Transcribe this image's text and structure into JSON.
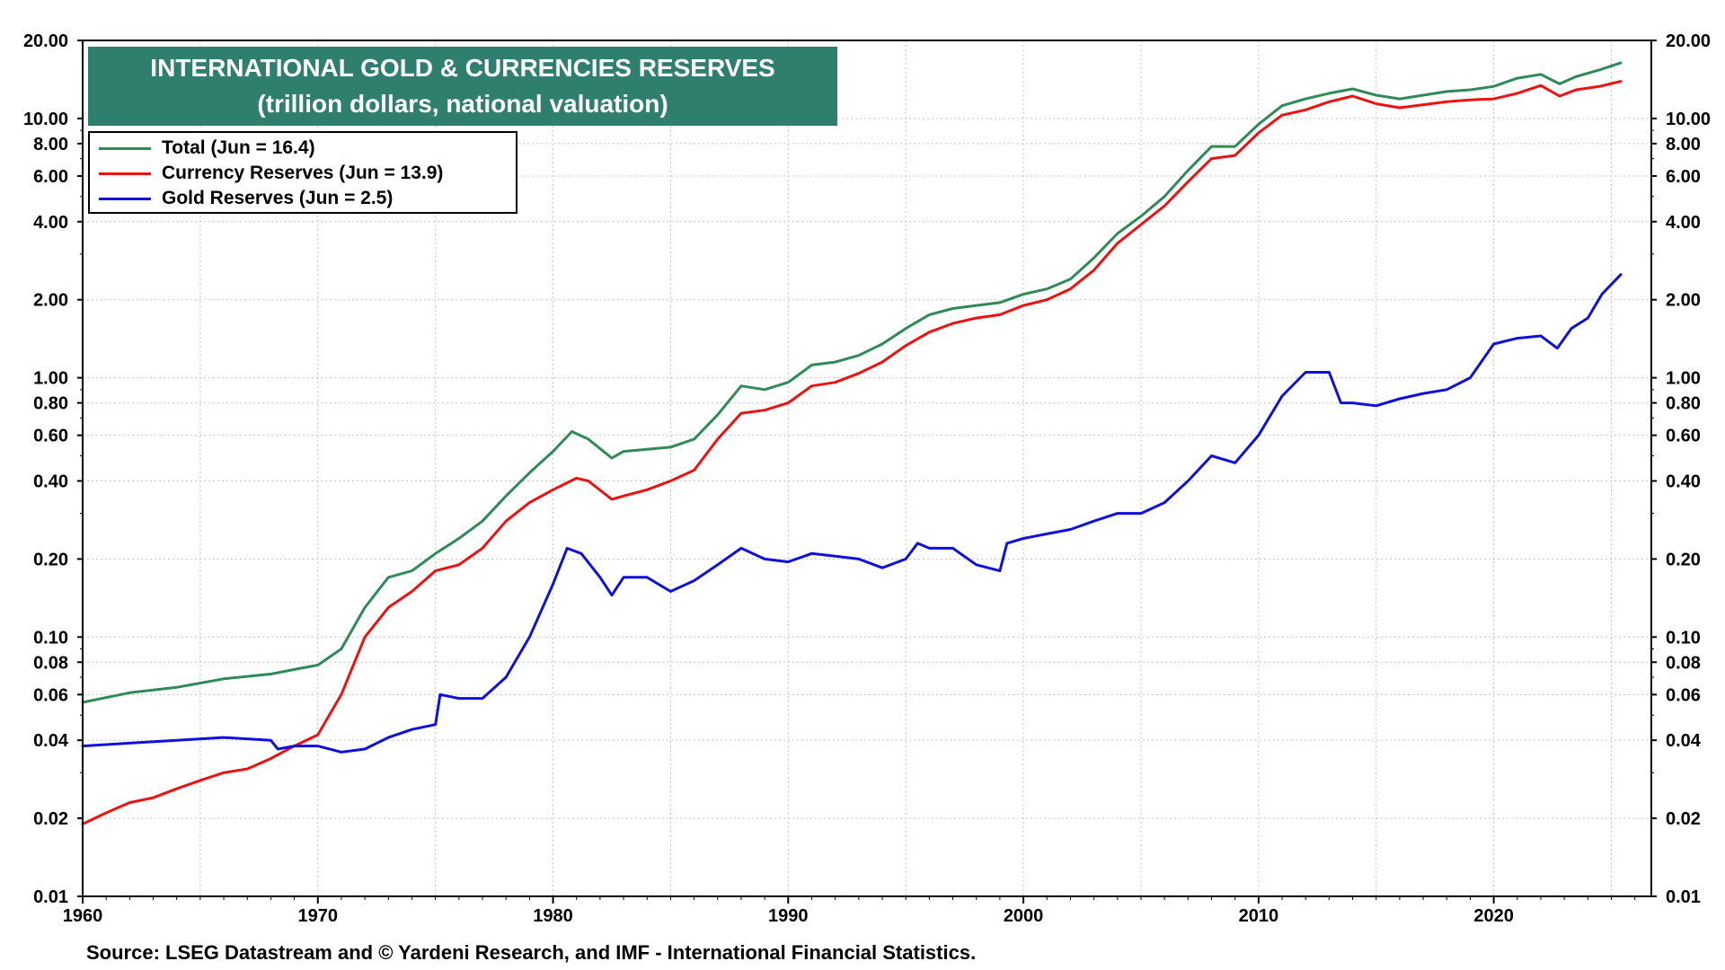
{
  "chart_data": {
    "type": "line",
    "title": "INTERNATIONAL GOLD & CURRENCIES RESERVES",
    "subtitle": "(trillion dollars, national valuation)",
    "yscale": "log",
    "ylim": [
      0.01,
      20
    ],
    "xlim": [
      1960,
      2026.7
    ],
    "x_ticks": [
      "1960",
      "1970",
      "1980",
      "1990",
      "2000",
      "2010",
      "2020"
    ],
    "x_tick_values": [
      1960,
      1970,
      1980,
      1990,
      2000,
      2010,
      2020
    ],
    "y_ticks": [
      "0.01",
      "0.02",
      "0.04",
      "0.06",
      "0.08",
      "0.10",
      "0.20",
      "0.40",
      "0.60",
      "0.80",
      "1.00",
      "2.00",
      "4.00",
      "6.00",
      "8.00",
      "10.00",
      "20.00"
    ],
    "y_tick_values": [
      0.01,
      0.02,
      0.04,
      0.06,
      0.08,
      0.1,
      0.2,
      0.4,
      0.6,
      0.8,
      1,
      2,
      4,
      6,
      8,
      10,
      20
    ],
    "grid": true,
    "legend_position": "top-left",
    "series": [
      {
        "name": "Total (Jun = 16.4)",
        "color": "#2e8b57",
        "points": [
          [
            1960,
            0.056
          ],
          [
            1962,
            0.061
          ],
          [
            1964,
            0.064
          ],
          [
            1966,
            0.069
          ],
          [
            1968,
            0.072
          ],
          [
            1969,
            0.075
          ],
          [
            1970,
            0.078
          ],
          [
            1971,
            0.09
          ],
          [
            1972,
            0.13
          ],
          [
            1973,
            0.17
          ],
          [
            1974,
            0.18
          ],
          [
            1975,
            0.21
          ],
          [
            1976,
            0.24
          ],
          [
            1977,
            0.28
          ],
          [
            1978,
            0.35
          ],
          [
            1979,
            0.43
          ],
          [
            1980,
            0.52
          ],
          [
            1980.8,
            0.62
          ],
          [
            1981.5,
            0.58
          ],
          [
            1982.5,
            0.49
          ],
          [
            1983,
            0.52
          ],
          [
            1984,
            0.53
          ],
          [
            1985,
            0.54
          ],
          [
            1986,
            0.58
          ],
          [
            1987,
            0.72
          ],
          [
            1988,
            0.93
          ],
          [
            1989,
            0.9
          ],
          [
            1990,
            0.96
          ],
          [
            1991,
            1.12
          ],
          [
            1992,
            1.15
          ],
          [
            1993,
            1.22
          ],
          [
            1994,
            1.35
          ],
          [
            1995,
            1.55
          ],
          [
            1996,
            1.75
          ],
          [
            1997,
            1.85
          ],
          [
            1998,
            1.9
          ],
          [
            1999,
            1.95
          ],
          [
            2000,
            2.1
          ],
          [
            2001,
            2.2
          ],
          [
            2002,
            2.4
          ],
          [
            2003,
            2.9
          ],
          [
            2004,
            3.6
          ],
          [
            2005,
            4.2
          ],
          [
            2006,
            5.0
          ],
          [
            2007,
            6.3
          ],
          [
            2008,
            7.8
          ],
          [
            2009,
            7.8
          ],
          [
            2010,
            9.5
          ],
          [
            2011,
            11.2
          ],
          [
            2012,
            11.9
          ],
          [
            2013,
            12.5
          ],
          [
            2014,
            13.0
          ],
          [
            2015,
            12.3
          ],
          [
            2016,
            11.9
          ],
          [
            2017,
            12.3
          ],
          [
            2018,
            12.7
          ],
          [
            2019,
            12.9
          ],
          [
            2020,
            13.3
          ],
          [
            2021,
            14.3
          ],
          [
            2022,
            14.8
          ],
          [
            2022.8,
            13.6
          ],
          [
            2023.5,
            14.5
          ],
          [
            2024.5,
            15.4
          ],
          [
            2025.4,
            16.4
          ]
        ]
      },
      {
        "name": "Currency Reserves (Jun = 13.9)",
        "color": "#ee1111",
        "points": [
          [
            1960,
            0.019
          ],
          [
            1961,
            0.021
          ],
          [
            1962,
            0.023
          ],
          [
            1963,
            0.024
          ],
          [
            1964,
            0.026
          ],
          [
            1965,
            0.028
          ],
          [
            1966,
            0.03
          ],
          [
            1967,
            0.031
          ],
          [
            1968,
            0.034
          ],
          [
            1969,
            0.038
          ],
          [
            1970,
            0.042
          ],
          [
            1971,
            0.06
          ],
          [
            1972,
            0.1
          ],
          [
            1973,
            0.13
          ],
          [
            1974,
            0.15
          ],
          [
            1975,
            0.18
          ],
          [
            1976,
            0.19
          ],
          [
            1977,
            0.22
          ],
          [
            1978,
            0.28
          ],
          [
            1979,
            0.33
          ],
          [
            1980,
            0.37
          ],
          [
            1981,
            0.41
          ],
          [
            1981.5,
            0.4
          ],
          [
            1982.5,
            0.34
          ],
          [
            1983,
            0.35
          ],
          [
            1984,
            0.37
          ],
          [
            1985,
            0.4
          ],
          [
            1986,
            0.44
          ],
          [
            1987,
            0.58
          ],
          [
            1988,
            0.73
          ],
          [
            1989,
            0.75
          ],
          [
            1990,
            0.8
          ],
          [
            1991,
            0.93
          ],
          [
            1992,
            0.96
          ],
          [
            1993,
            1.04
          ],
          [
            1994,
            1.15
          ],
          [
            1995,
            1.33
          ],
          [
            1996,
            1.5
          ],
          [
            1997,
            1.62
          ],
          [
            1998,
            1.7
          ],
          [
            1999,
            1.75
          ],
          [
            2000,
            1.9
          ],
          [
            2001,
            2.0
          ],
          [
            2002,
            2.2
          ],
          [
            2003,
            2.6
          ],
          [
            2004,
            3.3
          ],
          [
            2005,
            3.9
          ],
          [
            2006,
            4.6
          ],
          [
            2007,
            5.7
          ],
          [
            2008,
            7.0
          ],
          [
            2009,
            7.2
          ],
          [
            2010,
            8.8
          ],
          [
            2011,
            10.3
          ],
          [
            2012,
            10.8
          ],
          [
            2013,
            11.6
          ],
          [
            2014,
            12.2
          ],
          [
            2015,
            11.4
          ],
          [
            2016,
            11.0
          ],
          [
            2017,
            11.3
          ],
          [
            2018,
            11.6
          ],
          [
            2019,
            11.8
          ],
          [
            2020,
            11.9
          ],
          [
            2021,
            12.5
          ],
          [
            2022,
            13.4
          ],
          [
            2022.8,
            12.2
          ],
          [
            2023.5,
            12.9
          ],
          [
            2024.5,
            13.3
          ],
          [
            2025.4,
            13.9
          ]
        ]
      },
      {
        "name": "Gold Reserves (Jun = 2.5)",
        "color": "#1010dd",
        "points": [
          [
            1960,
            0.038
          ],
          [
            1962,
            0.039
          ],
          [
            1964,
            0.04
          ],
          [
            1966,
            0.041
          ],
          [
            1968,
            0.04
          ],
          [
            1968.3,
            0.037
          ],
          [
            1969,
            0.038
          ],
          [
            1970,
            0.038
          ],
          [
            1971,
            0.036
          ],
          [
            1972,
            0.037
          ],
          [
            1973,
            0.041
          ],
          [
            1974,
            0.044
          ],
          [
            1975,
            0.046
          ],
          [
            1975.2,
            0.06
          ],
          [
            1976,
            0.058
          ],
          [
            1977,
            0.058
          ],
          [
            1978,
            0.07
          ],
          [
            1979,
            0.1
          ],
          [
            1980,
            0.16
          ],
          [
            1980.6,
            0.22
          ],
          [
            1981.2,
            0.21
          ],
          [
            1982,
            0.17
          ],
          [
            1982.5,
            0.145
          ],
          [
            1983,
            0.17
          ],
          [
            1984,
            0.17
          ],
          [
            1985,
            0.15
          ],
          [
            1986,
            0.165
          ],
          [
            1987,
            0.19
          ],
          [
            1988,
            0.22
          ],
          [
            1989,
            0.2
          ],
          [
            1990,
            0.195
          ],
          [
            1991,
            0.21
          ],
          [
            1992,
            0.205
          ],
          [
            1993,
            0.2
          ],
          [
            1994,
            0.185
          ],
          [
            1995,
            0.2
          ],
          [
            1995.5,
            0.23
          ],
          [
            1996,
            0.22
          ],
          [
            1997,
            0.22
          ],
          [
            1998,
            0.19
          ],
          [
            1999,
            0.18
          ],
          [
            1999.3,
            0.23
          ],
          [
            2000,
            0.24
          ],
          [
            2001,
            0.25
          ],
          [
            2002,
            0.26
          ],
          [
            2003,
            0.28
          ],
          [
            2004,
            0.3
          ],
          [
            2005,
            0.3
          ],
          [
            2006,
            0.33
          ],
          [
            2007,
            0.4
          ],
          [
            2008,
            0.5
          ],
          [
            2009,
            0.47
          ],
          [
            2010,
            0.6
          ],
          [
            2011,
            0.85
          ],
          [
            2012,
            1.05
          ],
          [
            2013,
            1.05
          ],
          [
            2013.5,
            0.8
          ],
          [
            2014,
            0.8
          ],
          [
            2015,
            0.78
          ],
          [
            2016,
            0.83
          ],
          [
            2017,
            0.87
          ],
          [
            2018,
            0.9
          ],
          [
            2019,
            1.0
          ],
          [
            2020,
            1.35
          ],
          [
            2021,
            1.42
          ],
          [
            2022,
            1.45
          ],
          [
            2022.7,
            1.3
          ],
          [
            2023.3,
            1.55
          ],
          [
            2024,
            1.7
          ],
          [
            2024.6,
            2.1
          ],
          [
            2025.4,
            2.5
          ]
        ]
      }
    ],
    "source": "Source: LSEG Datastream and © Yardeni Research, and IMF - International Financial Statistics."
  }
}
